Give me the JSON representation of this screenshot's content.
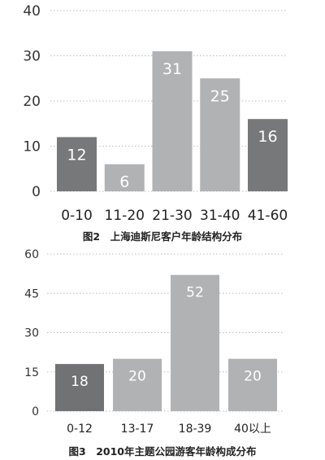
{
  "chart_data": [
    {
      "type": "bar",
      "title": "图2　上海迪斯尼客户年龄结构分布",
      "categories": [
        "0-10",
        "11-20",
        "21-30",
        "31-40",
        "41-60"
      ],
      "values": [
        12,
        6,
        31,
        25,
        16
      ],
      "ylim": [
        0,
        40
      ],
      "yticks": [
        0,
        10,
        20,
        30,
        40
      ],
      "grid": true,
      "bar_colors": [
        "#77787a",
        "#b1b2b4",
        "#b1b2b4",
        "#b1b2b4",
        "#77787a"
      ]
    },
    {
      "type": "bar",
      "title": "图3　2010年主题公园游客年龄构成分布",
      "categories": [
        "0-12",
        "13-17",
        "18-39",
        "40以上"
      ],
      "values": [
        18,
        20,
        52,
        20
      ],
      "ylim": [
        0,
        60
      ],
      "yticks": [
        0,
        15,
        30,
        45,
        60
      ],
      "grid": true,
      "bar_colors": [
        "#717274",
        "#b1b2b4",
        "#b1b2b4",
        "#b1b2b4"
      ]
    }
  ]
}
